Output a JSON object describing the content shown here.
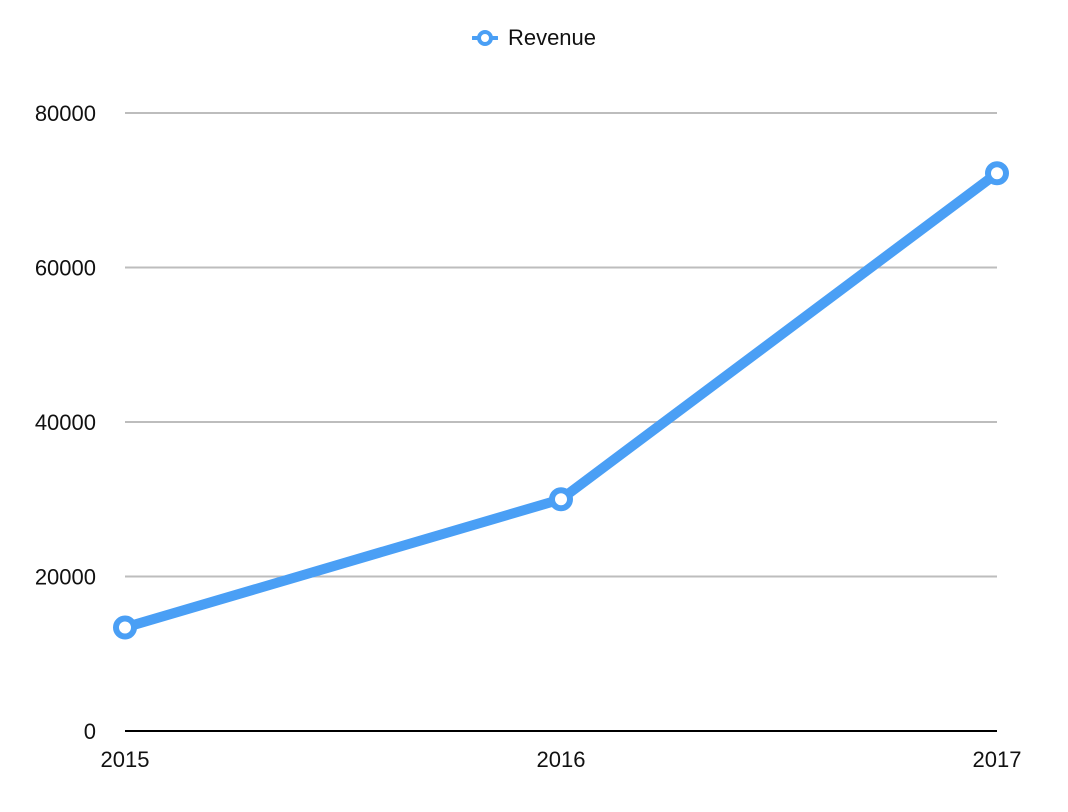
{
  "chart_data": {
    "type": "line",
    "categories": [
      "2015",
      "2016",
      "2017"
    ],
    "series": [
      {
        "name": "Revenue",
        "color": "#4a9ff5",
        "values": [
          13400,
          30000,
          72200
        ]
      }
    ],
    "ylim": [
      0,
      80000
    ],
    "yticks": [
      "0",
      "20000",
      "40000",
      "60000",
      "80000"
    ],
    "grid": true,
    "legend_position": "top-center",
    "title": "",
    "xlabel": "",
    "ylabel": ""
  }
}
